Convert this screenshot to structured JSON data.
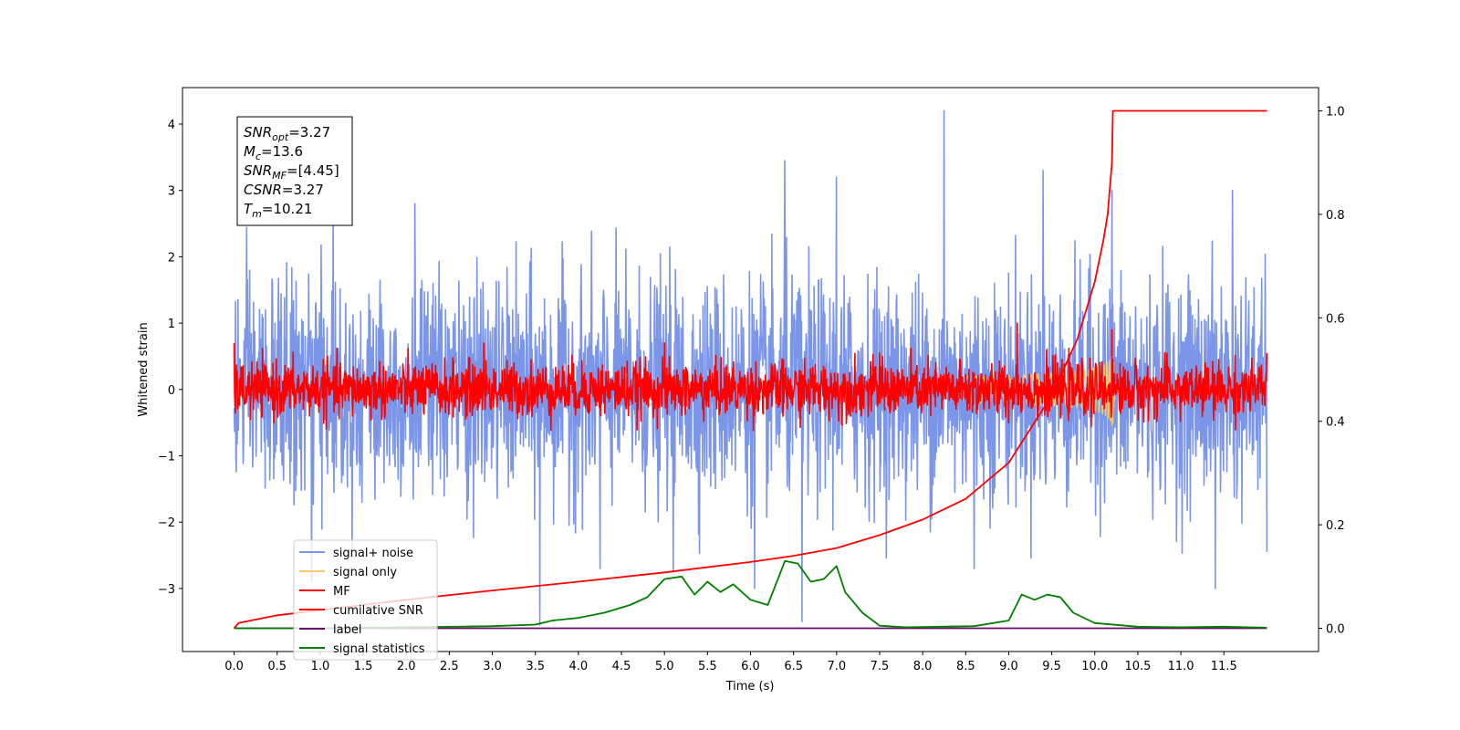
{
  "chart_data": {
    "type": "line",
    "xlabel": "Time (s)",
    "ylabel": "Whitened strain",
    "xlim": [
      -0.6,
      12.6
    ],
    "ylim": [
      -3.95,
      4.55
    ],
    "y2lim": [
      -0.045,
      1.045
    ],
    "x_ticks": [
      "0.0",
      "0.5",
      "1.0",
      "1.5",
      "2.0",
      "2.5",
      "3.0",
      "3.5",
      "4.0",
      "4.5",
      "5.0",
      "5.5",
      "6.0",
      "6.5",
      "7.0",
      "7.5",
      "8.0",
      "8.5",
      "9.0",
      "9.5",
      "10.0",
      "10.5",
      "11.0",
      "11.5"
    ],
    "y_ticks": [
      "4",
      "3",
      "2",
      "1",
      "0",
      "−1",
      "−2",
      "−3"
    ],
    "y_tick_values": [
      4,
      3,
      2,
      1,
      0,
      -1,
      -2,
      -3
    ],
    "y2_ticks": [
      "1.0",
      "0.8",
      "0.6",
      "0.4",
      "0.2",
      "0.0"
    ],
    "y2_tick_values": [
      1.0,
      0.8,
      0.6,
      0.4,
      0.2,
      0.0
    ],
    "annotation": {
      "lines": [
        {
          "main": "SNR",
          "sub": "opt",
          "rest": "=3.27"
        },
        {
          "main": "M",
          "sub": "c",
          "rest": "=13.6"
        },
        {
          "main": "SNR",
          "sub": "MF",
          "rest": "=[4.45]"
        },
        {
          "main": "CSNR",
          "sub": "",
          "rest": "=3.27"
        },
        {
          "main": "T",
          "sub": "m",
          "rest": "=10.21"
        }
      ]
    },
    "legend_placement": "lower-left",
    "series": [
      {
        "name": "signal+ noise",
        "color": "#7b96e8",
        "axis": "left",
        "style": "noise",
        "x_range": [
          0.0,
          12.0
        ],
        "sigma": 0.82,
        "spikes": [
          [
            0.9,
            -2.9
          ],
          [
            3.55,
            -3.55
          ],
          [
            5.1,
            -2.75
          ],
          [
            6.4,
            3.45
          ],
          [
            6.6,
            -3.5
          ],
          [
            7.0,
            3.2
          ],
          [
            8.25,
            4.2
          ],
          [
            9.4,
            3.3
          ],
          [
            10.2,
            3.0
          ],
          [
            11.4,
            -3.0
          ],
          [
            11.6,
            3.0
          ],
          [
            1.15,
            2.9
          ],
          [
            4.25,
            -2.7
          ],
          [
            6.05,
            -3.0
          ],
          [
            8.6,
            -2.7
          ],
          [
            2.1,
            2.8
          ],
          [
            12.0,
            -2.45
          ]
        ]
      },
      {
        "name": "signal only",
        "color": "#f7c96e",
        "axis": "left",
        "style": "chirp",
        "x_range": [
          8.5,
          10.3
        ],
        "peak_time": 10.21,
        "peak_amp": 0.6
      },
      {
        "name": "MF",
        "color": "#ff0000",
        "axis": "left",
        "style": "noise",
        "x_range": [
          0.0,
          12.0
        ],
        "sigma": 0.2,
        "spikes": [
          [
            9.1,
            1.0
          ],
          [
            10.2,
            0.9
          ],
          [
            0.0,
            0.7
          ],
          [
            5.0,
            0.7
          ],
          [
            2.9,
            0.7
          ],
          [
            7.5,
            0.55
          ],
          [
            12.0,
            0.55
          ]
        ]
      },
      {
        "name": "cumilative SNR",
        "color": "#ff0000",
        "axis": "right",
        "style": "curve",
        "x": [
          0.0,
          0.05,
          0.5,
          1.0,
          2.0,
          3.0,
          4.0,
          5.0,
          6.0,
          6.5,
          7.0,
          7.5,
          8.0,
          8.5,
          9.0,
          9.5,
          9.8,
          10.0,
          10.1,
          10.15,
          10.2,
          10.21,
          12.0
        ],
        "y": [
          0.0,
          0.01,
          0.025,
          0.035,
          0.055,
          0.073,
          0.09,
          0.108,
          0.128,
          0.14,
          0.155,
          0.18,
          0.21,
          0.25,
          0.32,
          0.45,
          0.56,
          0.67,
          0.75,
          0.8,
          0.9,
          1.0,
          1.0
        ]
      },
      {
        "name": "label",
        "color": "#6a0d6a",
        "axis": "right",
        "style": "curve",
        "x": [
          0.0,
          12.0
        ],
        "y": [
          0.0,
          0.0
        ]
      },
      {
        "name": "signal statistics",
        "color": "#008000",
        "axis": "right",
        "style": "curve",
        "x": [
          0.0,
          1.0,
          2.0,
          3.0,
          3.5,
          3.7,
          4.0,
          4.3,
          4.6,
          4.8,
          5.0,
          5.2,
          5.35,
          5.5,
          5.65,
          5.8,
          6.0,
          6.2,
          6.4,
          6.55,
          6.7,
          6.85,
          7.0,
          7.1,
          7.3,
          7.5,
          7.8,
          8.2,
          8.6,
          9.0,
          9.15,
          9.3,
          9.45,
          9.6,
          9.75,
          10.0,
          10.5,
          11.0,
          11.5,
          12.0
        ],
        "y": [
          0.0,
          0.0,
          0.002,
          0.004,
          0.007,
          0.015,
          0.02,
          0.03,
          0.045,
          0.06,
          0.095,
          0.1,
          0.065,
          0.09,
          0.07,
          0.085,
          0.055,
          0.045,
          0.13,
          0.125,
          0.09,
          0.095,
          0.12,
          0.07,
          0.03,
          0.005,
          0.002,
          0.003,
          0.004,
          0.015,
          0.065,
          0.055,
          0.065,
          0.06,
          0.03,
          0.01,
          0.003,
          0.002,
          0.003,
          0.001
        ]
      }
    ]
  }
}
